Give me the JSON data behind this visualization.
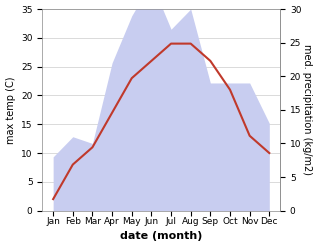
{
  "months": [
    "Jan",
    "Feb",
    "Mar",
    "Apr",
    "May",
    "Jun",
    "Jul",
    "Aug",
    "Sep",
    "Oct",
    "Nov",
    "Dec"
  ],
  "temp": [
    2,
    8,
    11,
    17,
    23,
    26,
    29,
    29,
    26,
    21,
    13,
    10
  ],
  "precip": [
    8,
    11,
    10,
    22,
    29,
    34,
    27,
    30,
    19,
    19,
    19,
    13
  ],
  "temp_color": "#c0392b",
  "precip_color_fill": "#c8cdf0",
  "precip_color_edge": "#a0a8e0",
  "xlabel": "date (month)",
  "ylabel_left": "max temp (C)",
  "ylabel_right": "med. precipitation (kg/m2)",
  "ylim_left": [
    0,
    35
  ],
  "ylim_right": [
    0,
    30
  ],
  "yticks_left": [
    0,
    5,
    10,
    15,
    20,
    25,
    30,
    35
  ],
  "yticks_right": [
    0,
    5,
    10,
    15,
    20,
    25,
    30
  ],
  "background_color": "#ffffff",
  "grid_color": "#cccccc",
  "precip_scale": 1.1667
}
